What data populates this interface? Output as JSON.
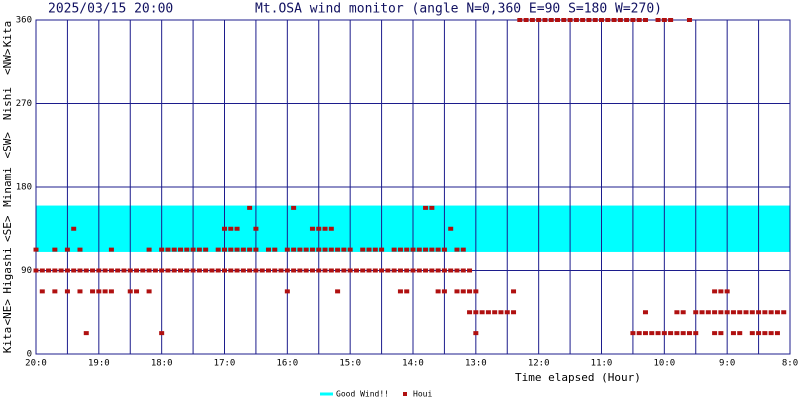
{
  "chart_data": {
    "type": "scatter",
    "date": "2025/03/15 20:00",
    "title": "Mt.OSA wind monitor (angle N=0,360 E=90 S=180 W=270)",
    "ylabel_parts": [
      "Kita",
      "<NE>",
      "Higashi",
      "<SE>",
      "Minami",
      "<SW>",
      "Nishi",
      "<NW>",
      "Kita"
    ],
    "xlabel": "Time elapsed (Hour)",
    "xlim": [
      0,
      12
    ],
    "xticks": [
      {
        "value": 0,
        "label": "20:0"
      },
      {
        "value": 1,
        "label": "19:0"
      },
      {
        "value": 2,
        "label": "18:0"
      },
      {
        "value": 3,
        "label": "17:0"
      },
      {
        "value": 4,
        "label": "16:0"
      },
      {
        "value": 5,
        "label": "15:0"
      },
      {
        "value": 6,
        "label": "14:0"
      },
      {
        "value": 7,
        "label": "13:0"
      },
      {
        "value": 8,
        "label": "12:0"
      },
      {
        "value": 9,
        "label": "11:0"
      },
      {
        "value": 10,
        "label": "10:0"
      },
      {
        "value": 11,
        "label": "9:0"
      },
      {
        "value": 12,
        "label": "8:0"
      }
    ],
    "ylim": [
      0,
      360
    ],
    "yticks": [
      0,
      90,
      180,
      270,
      360
    ],
    "band": {
      "name": "Good Wind!!",
      "color": "#00ffff",
      "range": [
        110,
        160
      ]
    },
    "series": [
      {
        "name": "Houi",
        "color": "#b01010",
        "x": [
          0,
          0.1,
          0.2,
          0.3,
          0.4,
          0.5,
          0.6,
          0.7,
          0.8,
          0.9,
          1,
          1.1,
          1.2,
          1.3,
          1.4,
          1.5,
          1.6,
          1.7,
          1.8,
          1.9,
          2,
          2.1,
          2.2,
          2.3,
          2.4,
          2.5,
          2.6,
          2.7,
          2.8,
          2.9,
          3,
          3.1,
          3.2,
          3.3,
          3.4,
          3.5,
          3.6,
          3.7,
          3.8,
          3.9,
          4,
          4.1,
          4.2,
          4.3,
          4.4,
          4.5,
          4.6,
          4.7,
          4.8,
          4.9,
          5,
          5.1,
          5.2,
          5.3,
          5.4,
          5.5,
          5.6,
          5.7,
          5.8,
          5.9,
          6,
          6.1,
          6.2,
          6.3,
          6.4,
          6.5,
          6.6,
          6.7,
          6.8,
          6.9,
          0,
          0.3,
          0.5,
          0.7,
          1.2,
          1.8,
          2,
          2.1,
          2.2,
          2.3,
          2.4,
          2.5,
          2.6,
          2.7,
          2.9,
          3,
          3.1,
          3.2,
          3.3,
          3.4,
          3.5,
          3.7,
          3.8,
          4,
          4.1,
          4.2,
          4.3,
          4.4,
          4.5,
          4.6,
          4.7,
          4.8,
          4.9,
          5,
          5.2,
          5.3,
          5.4,
          5.5,
          5.7,
          5.8,
          5.9,
          6,
          6.1,
          6.2,
          6.3,
          6.4,
          6.5,
          6.7,
          6.8,
          0.6,
          3,
          3.1,
          3.2,
          3.5,
          4.4,
          4.5,
          4.6,
          4.7,
          6.6,
          3.4,
          4.1,
          6.2,
          6.3,
          0.1,
          0.3,
          0.5,
          0.7,
          0.9,
          1,
          1.1,
          1.2,
          1.5,
          1.6,
          1.8,
          4,
          4.8,
          5.8,
          5.9,
          6.4,
          6.5,
          6.7,
          6.8,
          6.9,
          7,
          7.6,
          10.8,
          10.9,
          11,
          6.9,
          7,
          7.1,
          7.2,
          7.3,
          7.4,
          7.5,
          7.6,
          9.7,
          10.2,
          10.3,
          10.5,
          10.6,
          10.7,
          10.8,
          10.9,
          11,
          11.1,
          11.2,
          11.3,
          11.4,
          11.5,
          11.6,
          11.7,
          11.8,
          11.9,
          0.8,
          2,
          7,
          9.5,
          9.6,
          9.7,
          9.8,
          9.9,
          10,
          10.1,
          10.2,
          10.3,
          10.4,
          10.5,
          10.8,
          10.9,
          11.1,
          11.2,
          11.4,
          11.5,
          11.6,
          11.7,
          11.8,
          7.7,
          7.8,
          7.9,
          8,
          8.1,
          8.2,
          8.3,
          8.4,
          8.5,
          8.6,
          8.7,
          8.8,
          8.9,
          9,
          9.1,
          9.2,
          9.3,
          9.4,
          9.5,
          9.6,
          9.7,
          9.9,
          10,
          10.1,
          10.4
        ],
        "values": [
          90,
          90,
          90,
          90,
          90,
          90,
          90,
          90,
          90,
          90,
          90,
          90,
          90,
          90,
          90,
          90,
          90,
          90,
          90,
          90,
          90,
          90,
          90,
          90,
          90,
          90,
          90,
          90,
          90,
          90,
          90,
          90,
          90,
          90,
          90,
          90,
          90,
          90,
          90,
          90,
          90,
          90,
          90,
          90,
          90,
          90,
          90,
          90,
          90,
          90,
          90,
          90,
          90,
          90,
          90,
          90,
          90,
          90,
          90,
          90,
          90,
          90,
          90,
          90,
          90,
          90,
          90,
          90,
          90,
          90,
          112.5,
          112.5,
          112.5,
          112.5,
          112.5,
          112.5,
          112.5,
          112.5,
          112.5,
          112.5,
          112.5,
          112.5,
          112.5,
          112.5,
          112.5,
          112.5,
          112.5,
          112.5,
          112.5,
          112.5,
          112.5,
          112.5,
          112.5,
          112.5,
          112.5,
          112.5,
          112.5,
          112.5,
          112.5,
          112.5,
          112.5,
          112.5,
          112.5,
          112.5,
          112.5,
          112.5,
          112.5,
          112.5,
          112.5,
          112.5,
          112.5,
          112.5,
          112.5,
          112.5,
          112.5,
          112.5,
          112.5,
          112.5,
          112.5,
          135,
          135,
          135,
          135,
          135,
          135,
          135,
          135,
          135,
          135,
          157.5,
          157.5,
          157.5,
          157.5,
          67.5,
          67.5,
          67.5,
          67.5,
          67.5,
          67.5,
          67.5,
          67.5,
          67.5,
          67.5,
          67.5,
          67.5,
          67.5,
          67.5,
          67.5,
          67.5,
          67.5,
          67.5,
          67.5,
          67.5,
          67.5,
          67.5,
          67.5,
          67.5,
          67.5,
          45,
          45,
          45,
          45,
          45,
          45,
          45,
          45,
          45,
          45,
          45,
          45,
          45,
          45,
          45,
          45,
          45,
          45,
          45,
          45,
          45,
          45,
          45,
          45,
          45,
          45,
          22.5,
          22.5,
          22.5,
          22.5,
          22.5,
          22.5,
          22.5,
          22.5,
          22.5,
          22.5,
          22.5,
          22.5,
          22.5,
          22.5,
          22.5,
          22.5,
          22.5,
          22.5,
          22.5,
          22.5,
          22.5,
          22.5,
          22.5,
          360,
          360,
          360,
          360,
          360,
          360,
          360,
          360,
          360,
          360,
          360,
          360,
          360,
          360,
          360,
          360,
          360,
          360,
          360,
          360,
          360,
          360,
          360,
          360,
          360
        ]
      }
    ]
  }
}
